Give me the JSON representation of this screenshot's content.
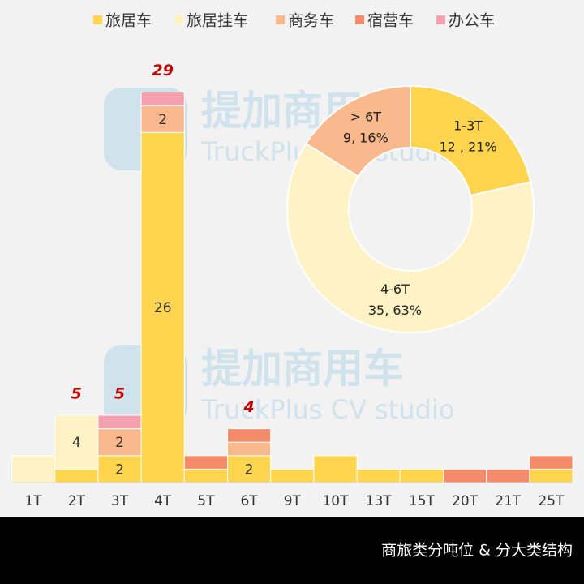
{
  "chart_data": [
    {
      "type": "bar",
      "stacked": true,
      "categories": [
        "1T",
        "2T",
        "3T",
        "4T",
        "5T",
        "6T",
        "9T",
        "10T",
        "13T",
        "15T",
        "20T",
        "21T",
        "25T"
      ],
      "series": [
        {
          "name": "旅居车",
          "color": "#FFD54F",
          "values": [
            0,
            1,
            2,
            26,
            1,
            2,
            1,
            2,
            1,
            1,
            0,
            0,
            1
          ],
          "value_labels": [
            null,
            null,
            "2",
            "26",
            null,
            "2",
            null,
            null,
            null,
            null,
            null,
            null,
            null
          ]
        },
        {
          "name": "旅居挂车",
          "color": "#FFF2C4",
          "values": [
            2,
            4,
            0,
            0,
            0,
            0,
            0,
            0,
            0,
            0,
            0,
            0,
            0
          ],
          "value_labels": [
            null,
            "4",
            null,
            null,
            null,
            null,
            null,
            null,
            null,
            null,
            null,
            null,
            null
          ]
        },
        {
          "name": "商务车",
          "color": "#F9B98D",
          "values": [
            0,
            0,
            2,
            2,
            0,
            1,
            0,
            0,
            0,
            0,
            0,
            0,
            0
          ],
          "value_labels": [
            null,
            null,
            "2",
            "2",
            null,
            null,
            null,
            null,
            null,
            null,
            null,
            null,
            null
          ]
        },
        {
          "name": "宿营车",
          "color": "#F58B6A",
          "values": [
            0,
            0,
            0,
            0,
            1,
            1,
            0,
            0,
            0,
            0,
            1,
            1,
            1
          ],
          "value_labels": [
            null,
            null,
            null,
            null,
            null,
            null,
            null,
            null,
            null,
            null,
            null,
            null,
            null
          ]
        },
        {
          "name": "办公车",
          "color": "#F4A0AE",
          "values": [
            0,
            0,
            1,
            1,
            0,
            0,
            0,
            0,
            0,
            0,
            0,
            0,
            0
          ],
          "value_labels": [
            null,
            null,
            null,
            null,
            null,
            null,
            null,
            null,
            null,
            null,
            null,
            null,
            null
          ]
        }
      ],
      "total_labels": [
        null,
        5,
        5,
        29,
        null,
        4,
        null,
        null,
        null,
        null,
        null,
        null,
        null
      ],
      "legend": "top"
    },
    {
      "type": "pie",
      "donut": true,
      "categories": [
        "1-3T",
        "4-6T",
        "> 6T"
      ],
      "values": [
        12,
        35,
        9
      ],
      "value_labels": [
        "12 , 21%",
        "35, 63%",
        "9, 16%"
      ],
      "colors": [
        "#FFD54F",
        "#FFF2C4",
        "#F9B98D"
      ]
    }
  ],
  "watermark": {
    "title": "提加商用车",
    "subtitle": "TruckPlus CV studio"
  },
  "caption": "商旅类分吨位 & 分大类结构"
}
